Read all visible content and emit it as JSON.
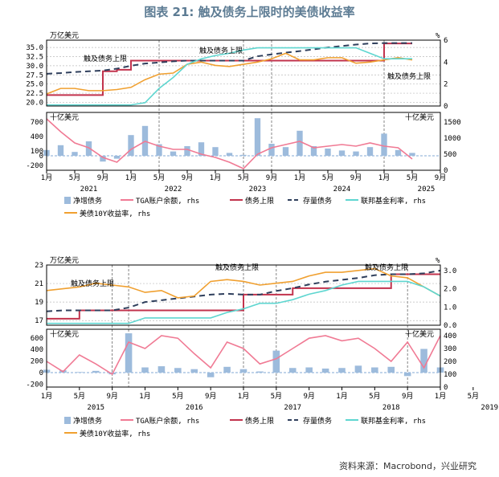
{
  "title": "图表 21: 触及债务上限时的美债收益率",
  "source": "资料来源：Macrobond，兴业研究",
  "colors": {
    "net_issuance": "#9dbbdc",
    "tga": "#f07a94",
    "debt_limit": "#c2334d",
    "debt_stock": "#2f3f5c",
    "fed_funds": "#5ed6d0",
    "ust10y": "#f0a030"
  },
  "legend": {
    "net_issuance": "净增债务",
    "tga": "TGA账户余额, rhs",
    "debt_limit": "债务上限",
    "debt_stock": "存量债务",
    "fed_funds": "联邦基金利率, rhs",
    "ust10y": "美债10Y收益率, rhs"
  },
  "chart_data": [
    {
      "type": "line",
      "panel": "2021-2025 top",
      "left_unit": "万亿美元",
      "right_unit": "%",
      "annotations": [
        "触及债务上限",
        "触及债务上限",
        "触及债务上限"
      ],
      "ylim": [
        19,
        37
      ],
      "yticks": [
        20.0,
        22.5,
        25.0,
        27.5,
        30.0,
        32.5,
        35.0
      ],
      "ylim_rhs": [
        0,
        6
      ],
      "yticks_rhs": [
        0,
        2,
        4,
        6
      ],
      "x_months": [
        1,
        3,
        5,
        7,
        9,
        11,
        13,
        15,
        17,
        19,
        21,
        23,
        25,
        27,
        29,
        31,
        33,
        35,
        37,
        39,
        41,
        43,
        45,
        47,
        49,
        51,
        53
      ],
      "series": [
        {
          "key": "debt_limit",
          "axis": "left",
          "values": [
            22.0,
            22.0,
            22.0,
            22.0,
            28.5,
            28.9,
            31.4,
            31.4,
            31.4,
            31.4,
            31.4,
            31.4,
            31.4,
            31.4,
            31.4,
            31.4,
            31.4,
            31.4,
            31.4,
            31.4,
            31.4,
            31.4,
            31.4,
            31.4,
            36.1,
            36.1,
            36.1
          ]
        },
        {
          "key": "debt_stock",
          "axis": "left",
          "values": [
            27.8,
            28.0,
            28.3,
            28.5,
            28.7,
            29.2,
            30.0,
            30.6,
            30.9,
            31.2,
            31.4,
            31.4,
            31.4,
            31.4,
            31.4,
            32.6,
            33.1,
            33.6,
            34.0,
            34.5,
            35.0,
            35.4,
            35.8,
            36.1,
            36.2,
            36.2,
            36.2
          ]
        },
        {
          "key": "ust10y",
          "axis": "right",
          "values": [
            1.1,
            1.6,
            1.6,
            1.4,
            1.4,
            1.5,
            1.7,
            2.4,
            2.9,
            3.0,
            3.8,
            4.0,
            3.7,
            3.6,
            3.8,
            4.0,
            4.3,
            4.8,
            4.2,
            4.2,
            4.4,
            4.4,
            3.9,
            4.0,
            4.2,
            4.4,
            4.2
          ]
        },
        {
          "key": "fed_funds",
          "axis": "right",
          "values": [
            0.1,
            0.1,
            0.1,
            0.1,
            0.1,
            0.1,
            0.1,
            0.3,
            1.6,
            2.6,
            3.8,
            4.3,
            4.6,
            4.8,
            5.1,
            5.3,
            5.3,
            5.3,
            5.3,
            5.3,
            5.3,
            5.3,
            5.3,
            4.8,
            4.3,
            4.3,
            4.3
          ]
        }
      ]
    },
    {
      "type": "bar",
      "panel": "2021-2025 bottom",
      "left_unit": "十亿美元",
      "right_unit": "十亿美元",
      "ylim": [
        -300,
        900
      ],
      "yticks": [
        -200,
        0,
        100,
        400,
        700
      ],
      "ylim_rhs": [
        0,
        1800
      ],
      "yticks_rhs": [
        0,
        500,
        1000,
        1500
      ],
      "x_months": [
        1,
        3,
        5,
        7,
        9,
        11,
        13,
        15,
        17,
        19,
        21,
        23,
        25,
        27,
        29,
        31,
        33,
        35,
        37,
        39,
        41,
        43,
        45,
        47,
        49,
        51,
        53
      ],
      "series": [
        {
          "key": "net_issuance",
          "axis": "left",
          "values": [
            120,
            220,
            80,
            300,
            -120,
            -60,
            430,
            620,
            240,
            90,
            200,
            280,
            180,
            60,
            20,
            780,
            250,
            180,
            520,
            200,
            150,
            110,
            90,
            180,
            460,
            120,
            60
          ]
        },
        {
          "key": "tga",
          "axis": "right",
          "values": [
            1600,
            1200,
            850,
            700,
            400,
            250,
            650,
            900,
            750,
            650,
            650,
            500,
            400,
            250,
            50,
            500,
            700,
            800,
            900,
            700,
            750,
            800,
            750,
            850,
            750,
            700,
            350
          ]
        }
      ],
      "x_tick_labels": [
        "1月",
        "5月",
        "9月",
        "1月",
        "5月",
        "9月",
        "1月",
        "5月",
        "9月",
        "1月",
        "5月",
        "9月",
        "1月",
        "5月",
        "9月"
      ],
      "year_labels": [
        "2021",
        "2022",
        "2023",
        "2024",
        "2025"
      ]
    },
    {
      "type": "line",
      "panel": "2015-2019 top",
      "left_unit": "万亿美元",
      "right_unit": "%",
      "annotations": [
        "触及债务上限",
        "触及债务上限",
        "触及债务上限"
      ],
      "ylim": [
        16.5,
        23
      ],
      "yticks": [
        17,
        19,
        21,
        23
      ],
      "ylim_rhs": [
        0,
        3.3
      ],
      "yticks_rhs": [
        0.0,
        1.0,
        2.0,
        3.0
      ],
      "x_months": [
        1,
        3,
        5,
        7,
        9,
        11,
        13,
        15,
        17,
        19,
        21,
        23,
        25,
        27,
        29,
        31,
        33,
        35,
        37,
        39,
        41,
        43,
        45,
        47,
        49
      ],
      "series": [
        {
          "key": "debt_limit",
          "axis": "left",
          "values": [
            17.2,
            17.2,
            18.1,
            18.1,
            18.1,
            18.1,
            18.1,
            18.1,
            18.1,
            18.1,
            18.1,
            18.1,
            19.8,
            19.8,
            19.8,
            20.5,
            20.5,
            20.5,
            20.5,
            20.5,
            20.5,
            22.0,
            22.0,
            22.0,
            22.0
          ]
        },
        {
          "key": "debt_stock",
          "axis": "left",
          "values": [
            18.0,
            18.1,
            18.1,
            18.1,
            18.1,
            18.4,
            19.0,
            19.2,
            19.4,
            19.6,
            19.8,
            19.9,
            19.8,
            19.8,
            20.2,
            20.5,
            20.9,
            21.2,
            21.4,
            21.6,
            21.9,
            22.0,
            22.0,
            22.1,
            22.4
          ]
        },
        {
          "key": "ust10y",
          "axis": "right",
          "values": [
            1.9,
            2.0,
            2.1,
            2.3,
            2.2,
            2.1,
            1.8,
            1.9,
            1.5,
            1.6,
            2.4,
            2.5,
            2.4,
            2.2,
            2.3,
            2.4,
            2.7,
            2.9,
            2.9,
            3.0,
            3.1,
            2.7,
            2.6,
            2.1,
            1.6
          ]
        },
        {
          "key": "fed_funds",
          "axis": "right",
          "values": [
            0.1,
            0.1,
            0.1,
            0.1,
            0.1,
            0.1,
            0.4,
            0.4,
            0.4,
            0.4,
            0.4,
            0.7,
            0.9,
            1.2,
            1.2,
            1.4,
            1.7,
            1.9,
            2.2,
            2.4,
            2.4,
            2.4,
            2.4,
            2.1,
            1.6
          ]
        }
      ]
    },
    {
      "type": "bar",
      "panel": "2015-2019 bottom",
      "left_unit": "十亿美元",
      "right_unit": "十亿美元",
      "ylim": [
        -250,
        750
      ],
      "yticks": [
        -200,
        0,
        200,
        400,
        600
      ],
      "ylim_rhs": [
        0,
        450
      ],
      "yticks_rhs": [
        0,
        100,
        200,
        300,
        400
      ],
      "x_months": [
        1,
        3,
        5,
        7,
        9,
        11,
        13,
        15,
        17,
        19,
        21,
        23,
        25,
        27,
        29,
        31,
        33,
        35,
        37,
        39,
        41,
        43,
        45,
        47,
        49
      ],
      "series": [
        {
          "key": "net_issuance",
          "axis": "left",
          "values": [
            50,
            40,
            10,
            30,
            -30,
            680,
            90,
            110,
            80,
            60,
            -80,
            100,
            60,
            20,
            380,
            80,
            90,
            70,
            80,
            120,
            90,
            100,
            -60,
            410,
            90
          ]
        },
        {
          "key": "tga",
          "axis": "right",
          "values": [
            200,
            120,
            250,
            180,
            100,
            350,
            300,
            400,
            380,
            260,
            150,
            350,
            300,
            180,
            220,
            300,
            380,
            400,
            360,
            380,
            300,
            200,
            350,
            150,
            400
          ]
        }
      ],
      "x_tick_labels": [
        "1月",
        "5月",
        "9月",
        "1月",
        "5月",
        "9月",
        "1月",
        "5月",
        "9月",
        "1月",
        "5月",
        "9月",
        "1月",
        "5月",
        "9月",
        "1月"
      ],
      "year_labels": [
        "2015",
        "2016",
        "2017",
        "2018",
        "2019"
      ]
    }
  ]
}
